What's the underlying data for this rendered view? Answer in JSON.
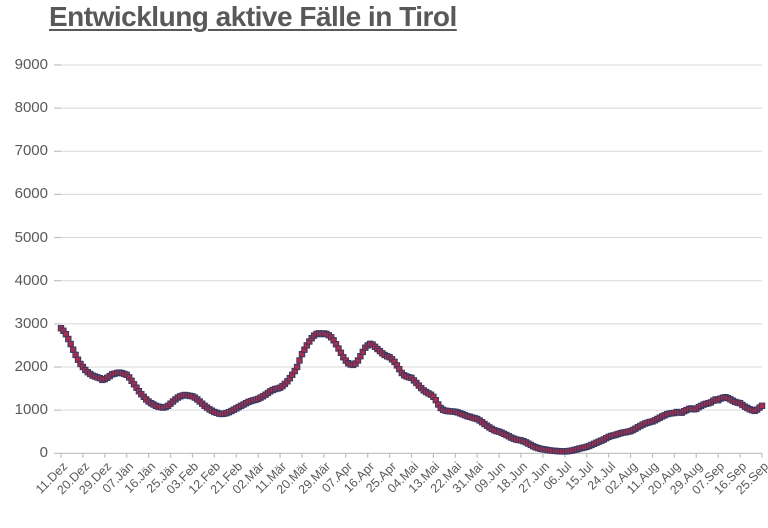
{
  "chart_data": {
    "type": "line",
    "title": "Entwicklung aktive Fälle in Tirol",
    "xlabel": "",
    "ylabel": "",
    "ylim": [
      0,
      9000
    ],
    "y_tick_step": 1000,
    "y_tick_labels": [
      "0",
      "1000",
      "2000",
      "3000",
      "4000",
      "5000",
      "6000",
      "7000",
      "8000",
      "9000"
    ],
    "x_tick_labels": [
      "11.Dez",
      "20.Dez",
      "29.Dez",
      "07.Jän",
      "16.Jän",
      "25.Jän",
      "03.Feb",
      "12.Feb",
      "21.Feb",
      "02.Mär",
      "11.Mär",
      "20.Mär",
      "29.Mär",
      "07.Apr",
      "16.Apr",
      "25.Apr",
      "04.Mai",
      "13.Mai",
      "22.Mai",
      "31.Mai",
      "09.Jun",
      "18.Jun",
      "27.Jun",
      "06.Jul",
      "15.Jul",
      "24.Jul",
      "02.Aug",
      "11.Aug",
      "20.Aug",
      "29.Aug",
      "07.Sep",
      "16.Sep",
      "25.Sep"
    ],
    "points_per_tick": 9,
    "sampling": "daily",
    "grid": "horizontal",
    "legend": "none",
    "marker": "square",
    "line_color": "#3f3e68",
    "marker_fill": "#ad2b4b",
    "marker_border": "#3a3a62",
    "grid_color": "#d9d9d9",
    "axis_color": "#bfbfbf",
    "text_color": "#595959",
    "values": [
      2900,
      2840,
      2760,
      2650,
      2530,
      2400,
      2280,
      2170,
      2070,
      2000,
      1930,
      1880,
      1840,
      1800,
      1780,
      1760,
      1740,
      1700,
      1720,
      1750,
      1790,
      1830,
      1845,
      1860,
      1870,
      1858,
      1840,
      1820,
      1760,
      1680,
      1600,
      1520,
      1440,
      1370,
      1310,
      1250,
      1200,
      1160,
      1130,
      1100,
      1080,
      1068,
      1060,
      1072,
      1100,
      1150,
      1200,
      1250,
      1292,
      1320,
      1340,
      1350,
      1342,
      1330,
      1320,
      1290,
      1250,
      1200,
      1150,
      1100,
      1060,
      1020,
      988,
      958,
      938,
      920,
      910,
      918,
      932,
      952,
      980,
      1010,
      1040,
      1070,
      1100,
      1130,
      1160,
      1188,
      1210,
      1228,
      1242,
      1260,
      1290,
      1322,
      1358,
      1398,
      1438,
      1468,
      1488,
      1502,
      1520,
      1558,
      1608,
      1668,
      1740,
      1820,
      1905,
      2000,
      2150,
      2300,
      2400,
      2500,
      2590,
      2668,
      2728,
      2768,
      2780,
      2762,
      2778,
      2768,
      2738,
      2688,
      2618,
      2528,
      2428,
      2328,
      2228,
      2148,
      2088,
      2058,
      2048,
      2082,
      2150,
      2250,
      2350,
      2448,
      2500,
      2538,
      2518,
      2468,
      2418,
      2368,
      2318,
      2278,
      2248,
      2228,
      2178,
      2118,
      2038,
      1950,
      1862,
      1808,
      1780,
      1762,
      1748,
      1690,
      1630,
      1570,
      1510,
      1458,
      1420,
      1388,
      1358,
      1310,
      1230,
      1130,
      1050,
      1008,
      988,
      978,
      972,
      968,
      962,
      948,
      928,
      905,
      882,
      860,
      845,
      828,
      812,
      795,
      760,
      720,
      680,
      640,
      600,
      565,
      535,
      515,
      500,
      478,
      452,
      424,
      394,
      364,
      338,
      320,
      308,
      300,
      280,
      255,
      225,
      195,
      165,
      140,
      120,
      105,
      95,
      85,
      75,
      67,
      60,
      55,
      50,
      47,
      45,
      44,
      48,
      55,
      65,
      78,
      92,
      108,
      122,
      135,
      150,
      170,
      195,
      220,
      245,
      270,
      295,
      320,
      350,
      380,
      400,
      415,
      430,
      450,
      468,
      480,
      490,
      500,
      515,
      540,
      570,
      605,
      635,
      665,
      690,
      710,
      725,
      740,
      765,
      795,
      825,
      855,
      880,
      905,
      920,
      930,
      935,
      958,
      948,
      940,
      975,
      1002,
      1030,
      1040,
      1020,
      1030,
      1068,
      1098,
      1128,
      1148,
      1160,
      1180,
      1218,
      1248,
      1230,
      1268,
      1288,
      1300,
      1280,
      1252,
      1220,
      1192,
      1172,
      1160,
      1120,
      1080,
      1050,
      1020,
      1000,
      982,
      1012,
      1058,
      1100
    ]
  }
}
